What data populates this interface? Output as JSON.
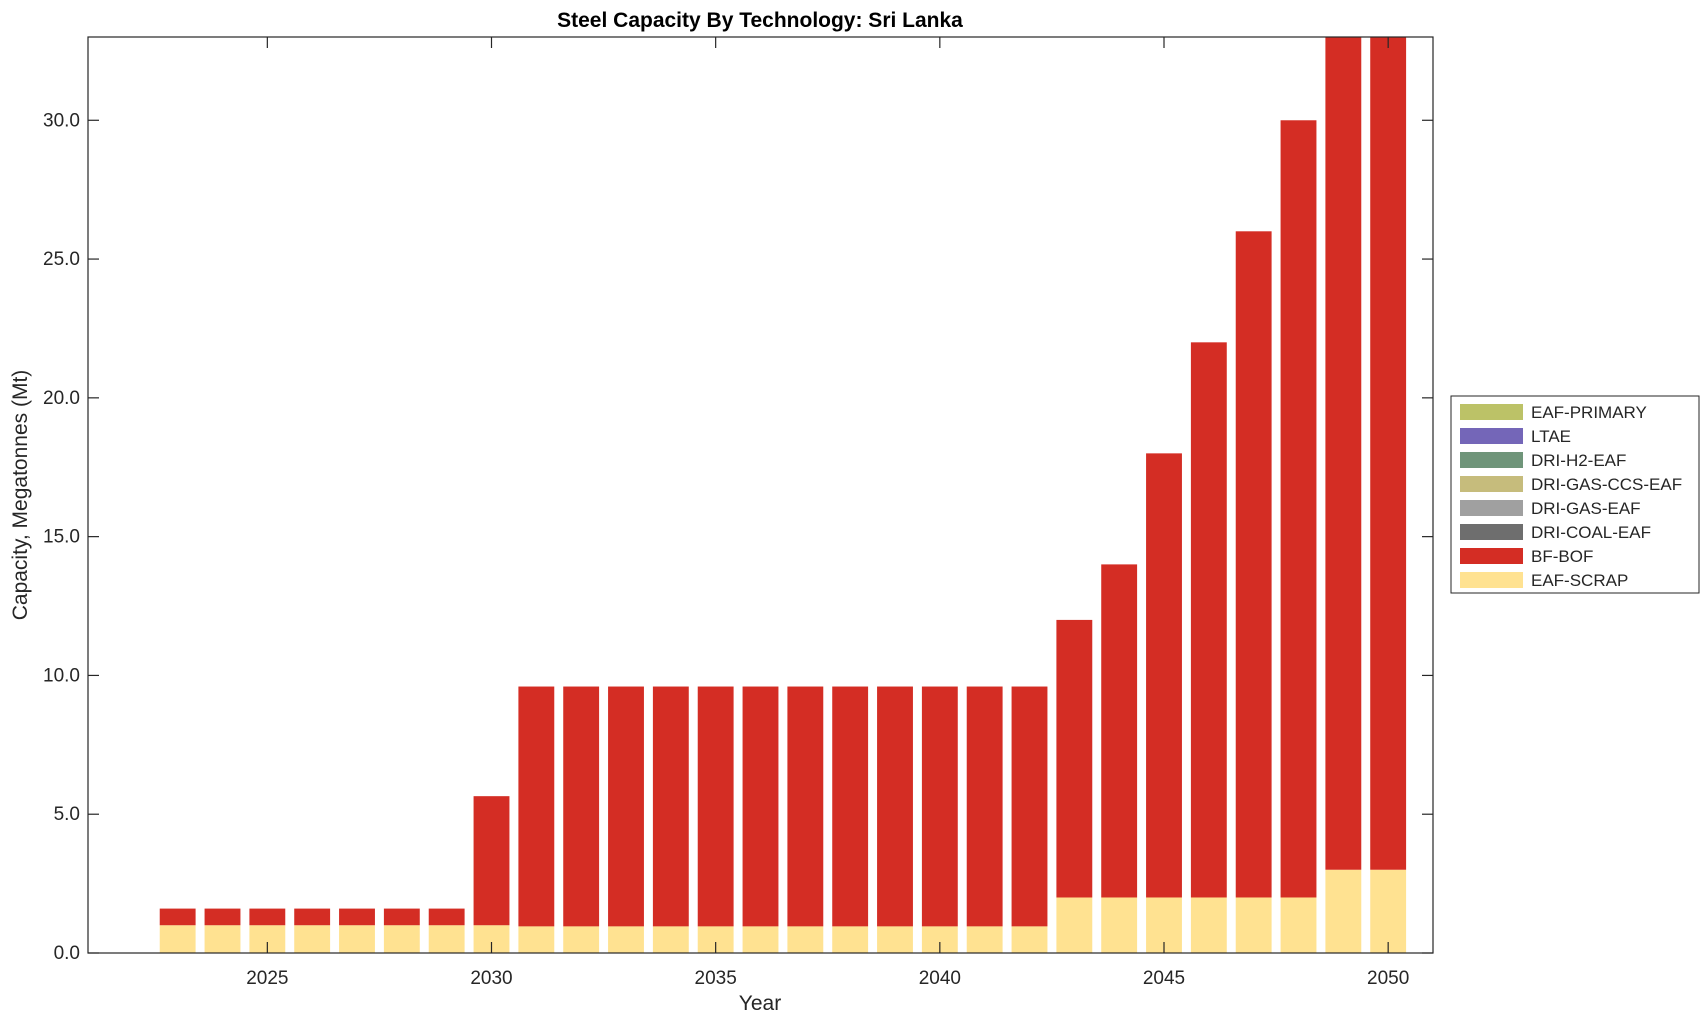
{
  "chart_data": {
    "type": "bar",
    "stacked": true,
    "title": "Steel Capacity By Technology: Sri Lanka",
    "xlabel": "Year",
    "ylabel": "Capacity, Megatonnes (Mt)",
    "ylim": [
      0,
      33
    ],
    "xlim": [
      2021,
      2051
    ],
    "y_ticks": [
      0,
      5,
      10,
      15,
      20,
      25,
      30
    ],
    "y_tick_labels": [
      "0.0",
      "5.0",
      "10.0",
      "15.0",
      "20.0",
      "25.0",
      "30.0"
    ],
    "x_ticks": [
      2025,
      2030,
      2035,
      2040,
      2045,
      2050
    ],
    "x_tick_labels": [
      "2025",
      "2030",
      "2035",
      "2040",
      "2045",
      "2050"
    ],
    "grid": false,
    "legend_position": "outside-right",
    "categories": [
      2023,
      2024,
      2025,
      2026,
      2027,
      2028,
      2029,
      2030,
      2031,
      2032,
      2033,
      2034,
      2035,
      2036,
      2037,
      2038,
      2039,
      2040,
      2041,
      2042,
      2043,
      2044,
      2045,
      2046,
      2047,
      2048,
      2049,
      2050
    ],
    "series": [
      {
        "name": "EAF-SCRAP",
        "color": "#ffe291",
        "values": [
          1.0,
          1.0,
          1.0,
          1.0,
          1.0,
          1.0,
          1.0,
          1.0,
          0.96,
          0.96,
          0.96,
          0.96,
          0.96,
          0.96,
          0.96,
          0.96,
          0.96,
          0.96,
          0.96,
          0.96,
          2.0,
          2.0,
          2.0,
          2.0,
          2.0,
          2.0,
          3.0,
          3.0
        ]
      },
      {
        "name": "BF-BOF",
        "color": "#d42d24",
        "values": [
          0.6,
          0.6,
          0.6,
          0.6,
          0.6,
          0.6,
          0.6,
          4.65,
          8.64,
          8.64,
          8.64,
          8.64,
          8.64,
          8.64,
          8.64,
          8.64,
          8.64,
          8.64,
          8.64,
          8.64,
          10.0,
          12.0,
          16.0,
          20.0,
          24.0,
          28.0,
          30.0,
          30.0
        ]
      },
      {
        "name": "DRI-COAL-EAF",
        "color": "#6e6e6e",
        "values": [
          0,
          0,
          0,
          0,
          0,
          0,
          0,
          0,
          0,
          0,
          0,
          0,
          0,
          0,
          0,
          0,
          0,
          0,
          0,
          0,
          0,
          0,
          0,
          0,
          0,
          0,
          0,
          0
        ]
      },
      {
        "name": "DRI-GAS-EAF",
        "color": "#a0a0a0",
        "values": [
          0,
          0,
          0,
          0,
          0,
          0,
          0,
          0,
          0,
          0,
          0,
          0,
          0,
          0,
          0,
          0,
          0,
          0,
          0,
          0,
          0,
          0,
          0,
          0,
          0,
          0,
          0,
          0
        ]
      },
      {
        "name": "DRI-GAS-CCS-EAF",
        "color": "#c6bc7c",
        "values": [
          0,
          0,
          0,
          0,
          0,
          0,
          0,
          0,
          0,
          0,
          0,
          0,
          0,
          0,
          0,
          0,
          0,
          0,
          0,
          0,
          0,
          0,
          0,
          0,
          0,
          0,
          0,
          0
        ]
      },
      {
        "name": "DRI-H2-EAF",
        "color": "#6f957a",
        "values": [
          0,
          0,
          0,
          0,
          0,
          0,
          0,
          0,
          0,
          0,
          0,
          0,
          0,
          0,
          0,
          0,
          0,
          0,
          0,
          0,
          0,
          0,
          0,
          0,
          0,
          0,
          0,
          0
        ]
      },
      {
        "name": "LTAE",
        "color": "#7466b8",
        "values": [
          0,
          0,
          0,
          0,
          0,
          0,
          0,
          0,
          0,
          0,
          0,
          0,
          0,
          0,
          0,
          0,
          0,
          0,
          0,
          0,
          0,
          0,
          0,
          0,
          0,
          0,
          0,
          0
        ]
      },
      {
        "name": "EAF-PRIMARY",
        "color": "#bcc267",
        "values": [
          0,
          0,
          0,
          0,
          0,
          0,
          0,
          0,
          0,
          0,
          0,
          0,
          0,
          0,
          0,
          0,
          0,
          0,
          0,
          0,
          0,
          0,
          0,
          0,
          0,
          0,
          0,
          0
        ]
      }
    ],
    "legend": [
      "EAF-PRIMARY",
      "LTAE",
      "DRI-H2-EAF",
      "DRI-GAS-CCS-EAF",
      "DRI-GAS-EAF",
      "DRI-COAL-EAF",
      "BF-BOF",
      "EAF-SCRAP"
    ]
  }
}
